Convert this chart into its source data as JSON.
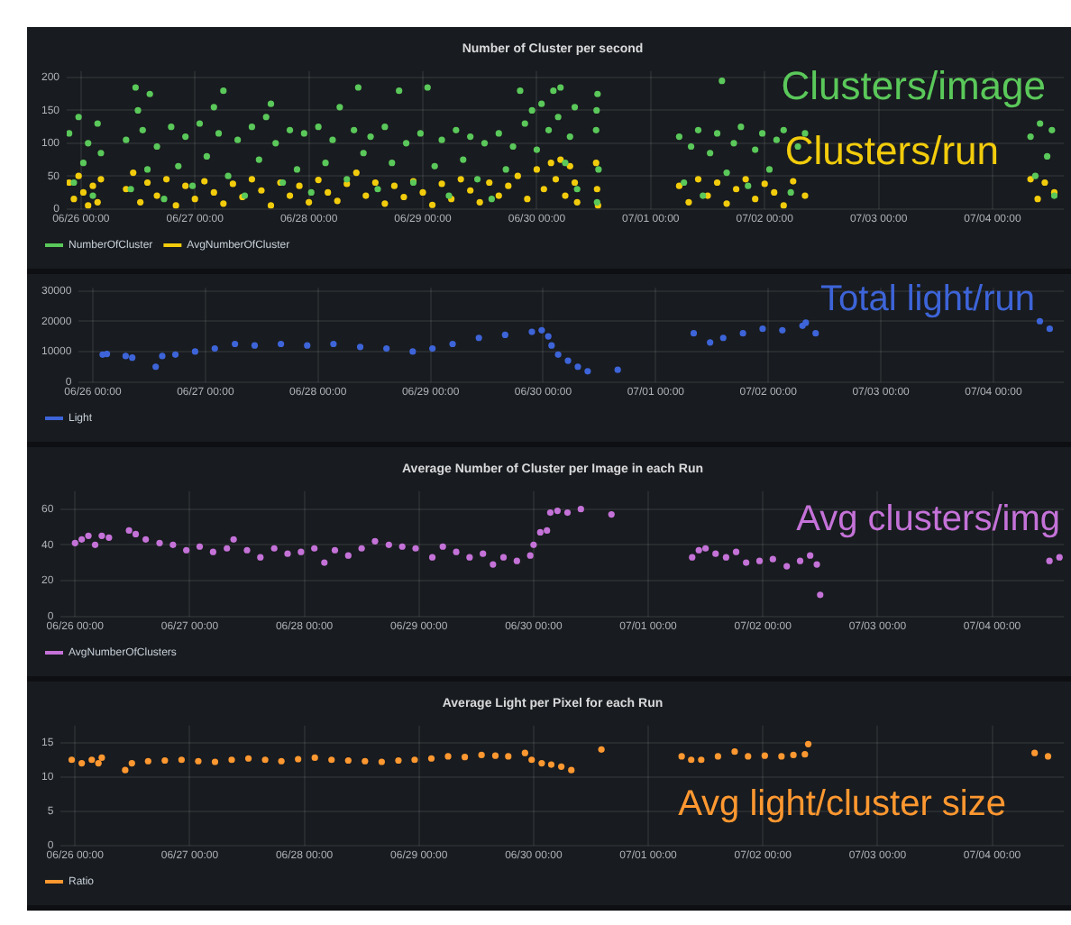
{
  "chart_data": [
    {
      "type": "scatter",
      "title": "Number of Cluster per second",
      "annotations": [
        "Clusters/image",
        "Clusters/run"
      ],
      "xlim": [
        "--06-25T21:00",
        "--07-04T15:00"
      ],
      "xticks": [
        {
          "value": "--06-26T00:00",
          "label": "06/26 00:00"
        },
        {
          "value": "--06-27T00:00",
          "label": "06/27 00:00"
        },
        {
          "value": "--06-28T00:00",
          "label": "06/28 00:00"
        },
        {
          "value": "--06-29T00:00",
          "label": "06/29 00:00"
        },
        {
          "value": "--06-30T00:00",
          "label": "06/30 00:00"
        },
        {
          "value": "--07-01T00:00",
          "label": "07/01 00:00"
        },
        {
          "value": "--07-02T00:00",
          "label": "07/02 00:00"
        },
        {
          "value": "--07-03T00:00",
          "label": "07/03 00:00"
        },
        {
          "value": "--07-04T00:00",
          "label": "07/04 00:00"
        }
      ],
      "ylim": [
        0,
        210
      ],
      "yticks": [
        0,
        50,
        100,
        150,
        200
      ],
      "grid": true,
      "legend": "bottom left",
      "marker": "circle",
      "series": [
        {
          "name": "NumberOfCluster",
          "color": "#5ac85a",
          "x": [
            "--06-25T21:30",
            "--06-25T22:30",
            "--06-25T23:30",
            "--06-26T00:30",
            "--06-26T01:30",
            "--06-26T02:30",
            "--06-26T03:30",
            "--06-26T04:12",
            "--06-26T09:30",
            "--06-26T10:30",
            "--06-26T11:30",
            "--06-26T12:00",
            "--06-26T13:00",
            "--06-26T14:00",
            "--06-26T14:30",
            "--06-26T16:00",
            "--06-26T17:30",
            "--06-26T19:00",
            "--06-26T20:30",
            "--06-26T22:00",
            "--06-26T23:30",
            "--06-27T01:00",
            "--06-27T02:30",
            "--06-27T04:00",
            "--06-27T05:00",
            "--06-27T06:00",
            "--06-27T07:00",
            "--06-27T09:00",
            "--06-27T10:30",
            "--06-27T12:00",
            "--06-27T13:30",
            "--06-27T15:00",
            "--06-27T16:00",
            "--06-27T17:00",
            "--06-27T18:30",
            "--06-27T20:00",
            "--06-27T21:30",
            "--06-27T23:00",
            "--06-28T00:30",
            "--06-28T02:00",
            "--06-28T03:30",
            "--06-28T05:00",
            "--06-28T06:30",
            "--06-28T08:00",
            "--06-28T09:30",
            "--06-28T10:24",
            "--06-28T11:30",
            "--06-28T13:00",
            "--06-28T14:30",
            "--06-28T16:00",
            "--06-28T17:30",
            "--06-28T19:00",
            "--06-28T20:30",
            "--06-28T22:00",
            "--06-28T23:30",
            "--06-29T01:00",
            "--06-29T02:30",
            "--06-29T04:00",
            "--06-29T05:30",
            "--06-29T07:00",
            "--06-29T08:30",
            "--06-29T10:00",
            "--06-29T11:30",
            "--06-29T13:00",
            "--06-29T14:30",
            "--06-29T16:00",
            "--06-29T17:30",
            "--06-29T19:00",
            "--06-29T20:30",
            "--06-29T21:30",
            "--06-29T23:00",
            "--06-30T00:00",
            "--06-30T01:00",
            "--06-30T02:30",
            "--06-30T03:30",
            "--06-30T04:30",
            "--06-30T05:00",
            "--06-30T06:00",
            "--06-30T07:00",
            "--06-30T08:00",
            "--06-30T08:30",
            "--06-30T12:30",
            "--06-30T12:48",
            "--06-30T13:00",
            "--06-30T12:36",
            "--06-30T12:42",
            "--07-01T06:00",
            "--07-01T07:00",
            "--07-01T08:30",
            "--07-01T10:00",
            "--07-01T11:00",
            "--07-01T12:30",
            "--07-01T14:00",
            "--07-01T15:00",
            "--07-01T16:00",
            "--07-01T17:30",
            "--07-01T19:00",
            "--07-01T20:30",
            "--07-01T22:00",
            "--07-01T23:30",
            "--07-02T01:00",
            "--07-02T02:30",
            "--07-02T04:00",
            "--07-02T05:30",
            "--07-02T07:00",
            "--07-02T08:30",
            "--07-04T08:00",
            "--07-04T09:00",
            "--07-04T10:00",
            "--07-04T11:30",
            "--07-04T12:30",
            "--07-04T13:00"
          ],
          "values": [
            115,
            40,
            140,
            70,
            100,
            20,
            130,
            85,
            105,
            30,
            185,
            150,
            120,
            60,
            175,
            95,
            15,
            125,
            65,
            110,
            35,
            130,
            80,
            155,
            115,
            180,
            50,
            105,
            20,
            125,
            75,
            140,
            160,
            100,
            40,
            120,
            60,
            115,
            25,
            125,
            70,
            105,
            155,
            45,
            120,
            185,
            85,
            110,
            30,
            125,
            70,
            180,
            100,
            40,
            115,
            185,
            65,
            105,
            20,
            120,
            75,
            110,
            45,
            100,
            15,
            115,
            60,
            95,
            180,
            130,
            150,
            90,
            160,
            120,
            180,
            140,
            185,
            70,
            110,
            155,
            30,
            120,
            175,
            60,
            150,
            10,
            110,
            40,
            95,
            120,
            20,
            85,
            115,
            195,
            55,
            100,
            125,
            35,
            90,
            115,
            60,
            105,
            120,
            25,
            95,
            115,
            110,
            50,
            130,
            80,
            120,
            20
          ]
        },
        {
          "name": "AvgNumberOfCluster",
          "color": "#f2cc0c",
          "x": [
            "--06-25T21:30",
            "--06-25T22:30",
            "--06-25T23:30",
            "--06-26T00:30",
            "--06-26T01:30",
            "--06-26T02:30",
            "--06-26T03:30",
            "--06-26T04:12",
            "--06-26T09:30",
            "--06-26T11:00",
            "--06-26T12:30",
            "--06-26T14:00",
            "--06-26T16:00",
            "--06-26T18:00",
            "--06-26T20:00",
            "--06-26T22:00",
            "--06-27T00:00",
            "--06-27T02:00",
            "--06-27T04:00",
            "--06-27T06:00",
            "--06-27T08:00",
            "--06-27T10:00",
            "--06-27T12:00",
            "--06-27T14:00",
            "--06-27T16:00",
            "--06-27T18:00",
            "--06-27T20:00",
            "--06-27T22:00",
            "--06-28T00:00",
            "--06-28T02:00",
            "--06-28T04:00",
            "--06-28T06:00",
            "--06-28T08:00",
            "--06-28T10:00",
            "--06-28T12:00",
            "--06-28T14:00",
            "--06-28T16:00",
            "--06-28T18:00",
            "--06-28T20:00",
            "--06-28T22:00",
            "--06-29T00:00",
            "--06-29T02:00",
            "--06-29T04:00",
            "--06-29T06:00",
            "--06-29T08:00",
            "--06-29T10:00",
            "--06-29T12:00",
            "--06-29T14:00",
            "--06-29T16:00",
            "--06-29T18:00",
            "--06-29T20:00",
            "--06-29T22:00",
            "--06-30T00:00",
            "--06-30T01:30",
            "--06-30T03:00",
            "--06-30T04:00",
            "--06-30T05:00",
            "--06-30T06:00",
            "--06-30T07:00",
            "--06-30T08:00",
            "--06-30T08:30",
            "--06-30T12:30",
            "--06-30T12:42",
            "--06-30T12:54",
            "--07-01T06:00",
            "--07-01T08:00",
            "--07-01T10:00",
            "--07-01T12:00",
            "--07-01T14:00",
            "--07-01T16:00",
            "--07-01T18:00",
            "--07-01T20:00",
            "--07-01T22:00",
            "--07-02T00:00",
            "--07-02T02:00",
            "--07-02T04:00",
            "--07-02T06:00",
            "--07-02T08:30",
            "--07-04T08:00",
            "--07-04T09:30",
            "--07-04T11:00",
            "--07-04T13:00"
          ],
          "values": [
            40,
            15,
            50,
            25,
            5,
            35,
            10,
            45,
            30,
            55,
            10,
            40,
            20,
            45,
            5,
            35,
            15,
            42,
            25,
            8,
            38,
            18,
            45,
            28,
            5,
            40,
            20,
            35,
            10,
            44,
            25,
            12,
            38,
            55,
            20,
            40,
            8,
            35,
            18,
            42,
            25,
            6,
            38,
            15,
            45,
            28,
            10,
            40,
            20,
            35,
            50,
            15,
            60,
            30,
            70,
            45,
            75,
            20,
            65,
            40,
            10,
            70,
            30,
            5,
            35,
            10,
            45,
            20,
            40,
            8,
            30,
            45,
            15,
            38,
            25,
            5,
            42,
            20,
            45,
            15,
            40,
            25
          ]
        }
      ]
    },
    {
      "type": "scatter",
      "annotations": [
        "Total light/run"
      ],
      "xlim": [
        "--06-25T21:00",
        "--07-04T15:00"
      ],
      "xticks": [
        {
          "value": "--06-26T00:00",
          "label": "06/26 00:00"
        },
        {
          "value": "--06-27T00:00",
          "label": "06/27 00:00"
        },
        {
          "value": "--06-28T00:00",
          "label": "06/28 00:00"
        },
        {
          "value": "--06-29T00:00",
          "label": "06/29 00:00"
        },
        {
          "value": "--06-30T00:00",
          "label": "06/30 00:00"
        },
        {
          "value": "--07-01T00:00",
          "label": "07/01 00:00"
        },
        {
          "value": "--07-02T00:00",
          "label": "07/02 00:00"
        },
        {
          "value": "--07-03T00:00",
          "label": "07/03 00:00"
        },
        {
          "value": "--07-04T00:00",
          "label": "07/04 00:00"
        }
      ],
      "ylim": [
        0,
        31000
      ],
      "yticks": [
        0,
        10000,
        20000,
        30000
      ],
      "grid": true,
      "legend": "bottom left",
      "marker": "circle",
      "series": [
        {
          "name": "Light",
          "color": "#3d64d8",
          "x": [
            "--06-26T02:06",
            "--06-26T03:00",
            "--06-26T07:00",
            "--06-26T08:24",
            "--06-26T13:24",
            "--06-26T14:48",
            "--06-26T17:36",
            "--06-26T21:48",
            "--06-27T02:00",
            "--06-27T06:18",
            "--06-27T10:30",
            "--06-27T16:06",
            "--06-27T21:42",
            "--06-28T03:18",
            "--06-28T09:00",
            "--06-28T14:36",
            "--06-28T20:12",
            "--06-29T00:24",
            "--06-29T04:42",
            "--06-29T10:18",
            "--06-29T15:54",
            "--06-29T21:36",
            "--06-29T23:42",
            "--06-30T01:06",
            "--06-30T01:48",
            "--06-30T03:12",
            "--06-30T05:18",
            "--06-30T07:24",
            "--06-30T09:30",
            "--06-30T15:54",
            "--07-01T08:06",
            "--07-01T11:36",
            "--07-01T14:24",
            "--07-01T18:36",
            "--07-01T22:48",
            "--07-02T03:00",
            "--07-02T07:18",
            "--07-02T08:00",
            "--07-02T10:06",
            "--07-04T09:54",
            "--07-04T12:00"
          ],
          "values": [
            9000,
            9200,
            8500,
            8000,
            5000,
            8500,
            9000,
            10000,
            11000,
            12500,
            12000,
            12500,
            12000,
            12500,
            11500,
            11000,
            10000,
            11000,
            12500,
            14500,
            15500,
            16500,
            17000,
            15000,
            12000,
            9000,
            7000,
            5000,
            3500,
            4000,
            16000,
            13000,
            14500,
            16000,
            17500,
            17000,
            18500,
            19500,
            16000,
            20000,
            17500
          ]
        }
      ]
    },
    {
      "type": "scatter",
      "title": "Average Number of Cluster per Image in each Run",
      "annotations": [
        "Avg clusters/img"
      ],
      "xlim": [
        "--06-25T21:00",
        "--07-04T15:00"
      ],
      "xticks": [
        {
          "value": "--06-26T00:00",
          "label": "06/26 00:00"
        },
        {
          "value": "--06-27T00:00",
          "label": "06/27 00:00"
        },
        {
          "value": "--06-28T00:00",
          "label": "06/28 00:00"
        },
        {
          "value": "--06-29T00:00",
          "label": "06/29 00:00"
        },
        {
          "value": "--06-30T00:00",
          "label": "06/30 00:00"
        },
        {
          "value": "--07-01T00:00",
          "label": "07/01 00:00"
        },
        {
          "value": "--07-02T00:00",
          "label": "07/02 00:00"
        },
        {
          "value": "--07-03T00:00",
          "label": "07/03 00:00"
        },
        {
          "value": "--07-04T00:00",
          "label": "07/04 00:00"
        }
      ],
      "ylim": [
        0,
        70
      ],
      "yticks": [
        0,
        20,
        40,
        60
      ],
      "grid": true,
      "legend": "bottom left",
      "marker": "circle",
      "series": [
        {
          "name": "AvgNumberOfClusters",
          "color": "#c472d8",
          "x": [
            "--06-26T00:00",
            "--06-26T01:24",
            "--06-26T02:48",
            "--06-26T04:12",
            "--06-26T05:36",
            "--06-26T07:06",
            "--06-26T11:18",
            "--06-26T12:42",
            "--06-26T14:48",
            "--06-26T17:42",
            "--06-26T20:30",
            "--06-26T23:18",
            "--06-27T02:06",
            "--06-27T04:54",
            "--06-27T07:48",
            "--06-27T09:12",
            "--06-27T12:00",
            "--06-27T14:48",
            "--06-27T17:42",
            "--06-27T20:30",
            "--06-27T23:18",
            "--06-28T02:06",
            "--06-28T04:12",
            "--06-28T06:24",
            "--06-28T09:12",
            "--06-28T12:00",
            "--06-28T14:48",
            "--06-28T17:42",
            "--06-28T20:30",
            "--06-28T23:18",
            "--06-29T02:48",
            "--06-29T05:00",
            "--06-29T07:48",
            "--06-29T10:36",
            "--06-29T13:24",
            "--06-29T15:30",
            "--06-29T17:42",
            "--06-29T20:30",
            "--06-29T23:18",
            "--06-30T00:00",
            "--06-30T01:24",
            "--06-30T02:48",
            "--06-30T03:30",
            "--06-30T05:00",
            "--06-30T07:06",
            "--06-30T09:54",
            "--06-30T16:18",
            "--07-01T09:12",
            "--07-01T10:36",
            "--07-01T12:00",
            "--07-01T14:06",
            "--07-01T16:18",
            "--07-01T18:24",
            "--07-01T20:30",
            "--07-01T23:18",
            "--07-02T02:06",
            "--07-02T05:00",
            "--07-02T07:48",
            "--07-02T09:54",
            "--07-02T11:18",
            "--07-02T12:00",
            "--07-04T12:00",
            "--07-04T14:06"
          ],
          "values": [
            41,
            43,
            45,
            40,
            45,
            44,
            48,
            46,
            43,
            41,
            40,
            37,
            39,
            36,
            38,
            43,
            37,
            33,
            38,
            35,
            36,
            38,
            30,
            37,
            34,
            38,
            42,
            40,
            39,
            38,
            33,
            39,
            36,
            33,
            35,
            29,
            33,
            31,
            34,
            40,
            47,
            48,
            58,
            59,
            58,
            60,
            57,
            33,
            37,
            38,
            35,
            33,
            36,
            30,
            31,
            32,
            28,
            31,
            34,
            29,
            12,
            31,
            33
          ]
        }
      ]
    },
    {
      "type": "scatter",
      "title": "Average Light per Pixel for each Run",
      "annotations": [
        "Avg light/cluster size"
      ],
      "xlim": [
        "--06-25T21:00",
        "--07-04T15:00"
      ],
      "xticks": [
        {
          "value": "--06-26T00:00",
          "label": "06/26 00:00"
        },
        {
          "value": "--06-27T00:00",
          "label": "06/27 00:00"
        },
        {
          "value": "--06-28T00:00",
          "label": "06/28 00:00"
        },
        {
          "value": "--06-29T00:00",
          "label": "06/29 00:00"
        },
        {
          "value": "--06-30T00:00",
          "label": "06/30 00:00"
        },
        {
          "value": "--07-01T00:00",
          "label": "07/01 00:00"
        },
        {
          "value": "--07-02T00:00",
          "label": "07/02 00:00"
        },
        {
          "value": "--07-03T00:00",
          "label": "07/03 00:00"
        },
        {
          "value": "--07-04T00:00",
          "label": "07/04 00:00"
        }
      ],
      "ylim": [
        0,
        17.5
      ],
      "yticks": [
        0,
        5,
        10,
        15
      ],
      "grid": true,
      "legend": "bottom left",
      "marker": "circle",
      "series": [
        {
          "name": "Ratio",
          "color": "#ff9830",
          "x": [
            "--06-25T23:18",
            "--06-26T01:24",
            "--06-26T03:30",
            "--06-26T04:54",
            "--06-26T05:36",
            "--06-26T10:30",
            "--06-26T11:54",
            "--06-26T15:18",
            "--06-26T18:48",
            "--06-26T22:18",
            "--06-27T01:48",
            "--06-27T05:18",
            "--06-27T08:48",
            "--06-27T12:18",
            "--06-27T15:48",
            "--06-27T19:12",
            "--06-27T22:42",
            "--06-28T02:12",
            "--06-28T05:42",
            "--06-28T09:12",
            "--06-28T12:42",
            "--06-28T16:12",
            "--06-28T19:42",
            "--06-28T23:06",
            "--06-29T02:36",
            "--06-29T06:06",
            "--06-29T09:36",
            "--06-29T13:06",
            "--06-29T16:00",
            "--06-29T18:42",
            "--06-29T22:12",
            "--06-29T23:36",
            "--06-30T01:42",
            "--06-30T03:42",
            "--06-30T05:48",
            "--06-30T07:54",
            "--06-30T14:12",
            "--07-01T07:00",
            "--07-01T09:00",
            "--07-01T11:06",
            "--07-01T14:36",
            "--07-01T18:06",
            "--07-01T20:54",
            "--07-02T00:24",
            "--07-02T03:54",
            "--07-02T06:24",
            "--07-02T08:48",
            "--07-02T09:30",
            "--07-04T08:54",
            "--07-04T11:42"
          ],
          "values": [
            12.5,
            12,
            12.5,
            12,
            12.8,
            11,
            12,
            12.3,
            12.4,
            12.5,
            12.3,
            12.2,
            12.5,
            12.7,
            12.5,
            12.3,
            12.6,
            12.8,
            12.5,
            12.4,
            12.3,
            12.2,
            12.4,
            12.5,
            12.7,
            13,
            12.9,
            13.2,
            13.1,
            13,
            13.5,
            12.5,
            12,
            11.8,
            11.5,
            11,
            14,
            13,
            12.5,
            12.5,
            13,
            13.7,
            13,
            13.1,
            13,
            13.2,
            13.3,
            14.8,
            13.5,
            13
          ]
        }
      ]
    }
  ]
}
